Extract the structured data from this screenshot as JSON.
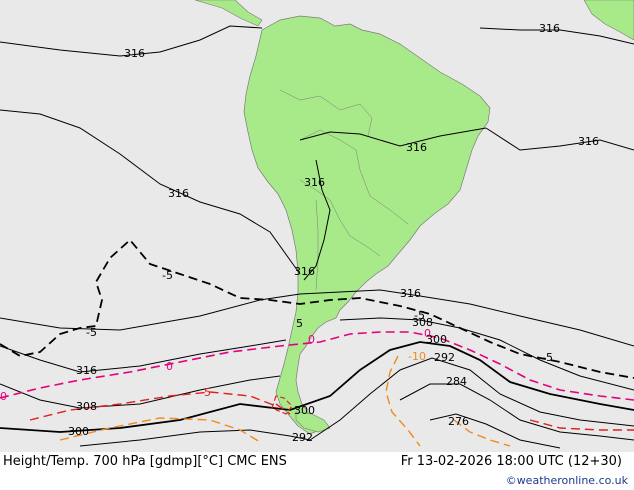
{
  "map": {
    "colors": {
      "ocean": "#e9e9e9",
      "land": "#a8ea8a",
      "land_border": "#7a7a7a",
      "height_contour": "#000000",
      "temp_0": "#e6007e",
      "temp_minus5": "#e0201e",
      "temp_minus10": "#f08a1e",
      "temp_plus5": "#000000"
    },
    "labels": [
      {
        "text": "316",
        "color": "black"
      },
      {
        "text": "316",
        "color": "black"
      },
      {
        "text": "316",
        "color": "black"
      },
      {
        "text": "316",
        "color": "black"
      },
      {
        "text": "316",
        "color": "black"
      },
      {
        "text": "316",
        "color": "black"
      },
      {
        "text": "316",
        "color": "black"
      },
      {
        "text": "316",
        "color": "black"
      },
      {
        "text": "316",
        "color": "black"
      },
      {
        "text": "-5",
        "color": "black"
      },
      {
        "text": "-5",
        "color": "black"
      },
      {
        "text": "5",
        "color": "black"
      },
      {
        "text": "-5",
        "color": "black"
      },
      {
        "text": "-5",
        "color": "black"
      },
      {
        "text": "308",
        "color": "black"
      },
      {
        "text": "300",
        "color": "black"
      },
      {
        "text": "292",
        "color": "black"
      },
      {
        "text": "284",
        "color": "black"
      },
      {
        "text": "276",
        "color": "black"
      },
      {
        "text": "0",
        "color": "magenta"
      },
      {
        "text": "0",
        "color": "magenta"
      },
      {
        "text": "0",
        "color": "magenta"
      },
      {
        "text": "0",
        "color": "magenta"
      },
      {
        "text": "-5",
        "color": "red"
      },
      {
        "text": "-10",
        "color": "orange"
      },
      {
        "text": "308",
        "color": "black"
      },
      {
        "text": "300",
        "color": "black"
      },
      {
        "text": "300",
        "color": "black"
      },
      {
        "text": "292",
        "color": "black"
      }
    ]
  },
  "footer": {
    "title": "Height/Temp. 700 hPa [gdmp][°C] CMC ENS",
    "date": "Fr 13-02-2026 18:00 UTC (12+30)",
    "credit": "©weatheronline.co.uk"
  }
}
